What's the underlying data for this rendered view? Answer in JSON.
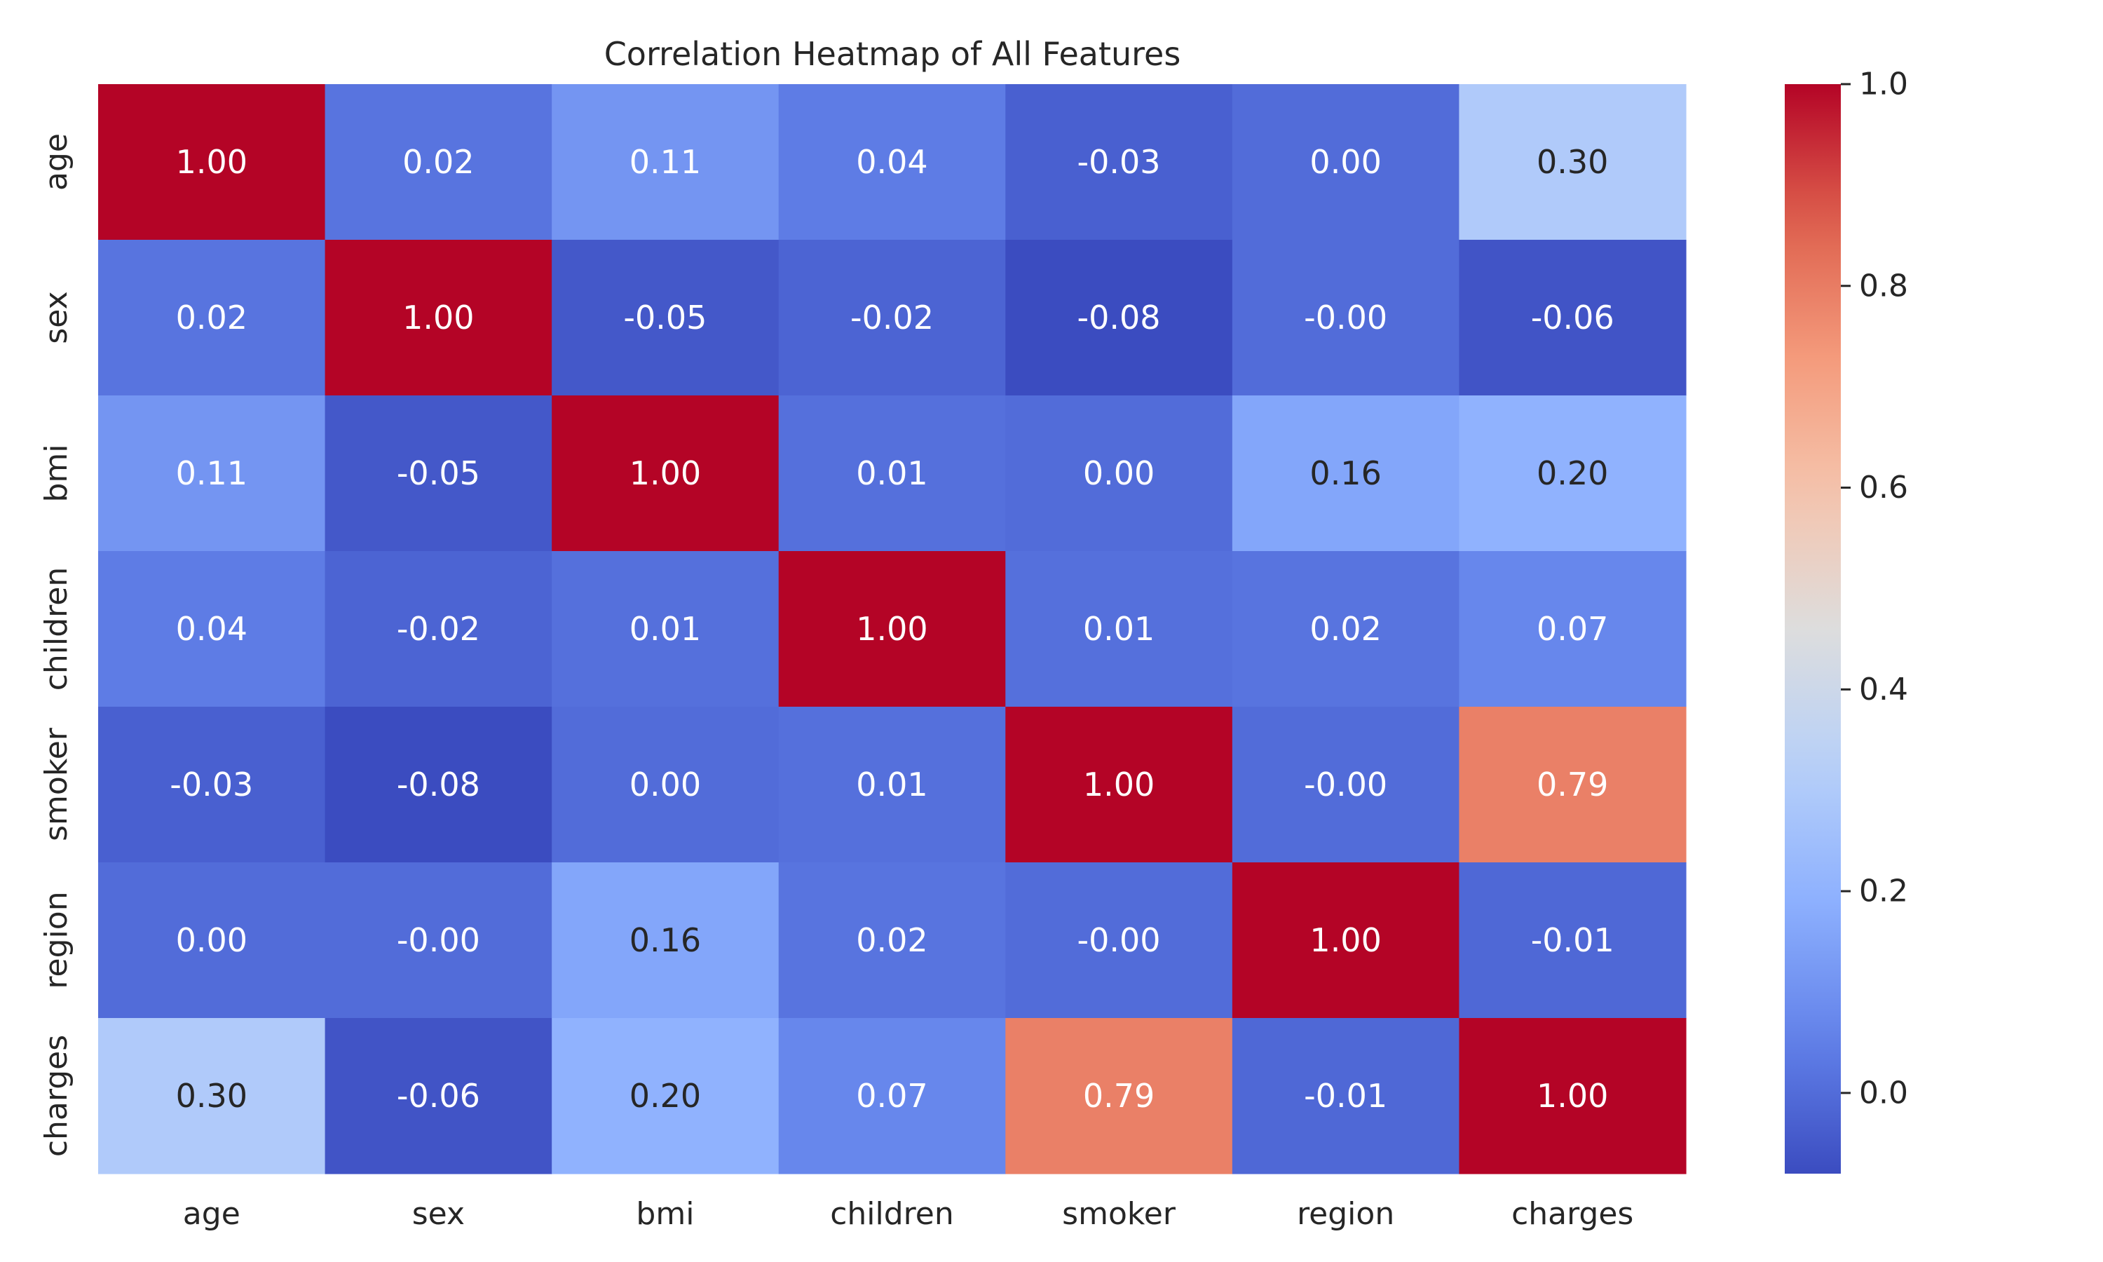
{
  "chart_data": {
    "type": "heatmap",
    "title": "Correlation Heatmap of All Features",
    "xlabel": "",
    "ylabel": "",
    "x_categories": [
      "age",
      "sex",
      "bmi",
      "children",
      "smoker",
      "region",
      "charges"
    ],
    "y_categories": [
      "age",
      "sex",
      "bmi",
      "children",
      "smoker",
      "region",
      "charges"
    ],
    "values": [
      [
        1.0,
        0.02,
        0.11,
        0.04,
        -0.03,
        0.0,
        0.3
      ],
      [
        0.02,
        1.0,
        -0.05,
        -0.02,
        -0.08,
        -0.0,
        -0.06
      ],
      [
        0.11,
        -0.05,
        1.0,
        0.01,
        0.0,
        0.16,
        0.2
      ],
      [
        0.04,
        -0.02,
        0.01,
        1.0,
        0.01,
        0.02,
        0.07
      ],
      [
        -0.03,
        -0.08,
        0.0,
        0.01,
        1.0,
        -0.0,
        0.79
      ],
      [
        0.0,
        -0.0,
        0.16,
        0.02,
        -0.0,
        1.0,
        -0.01
      ],
      [
        0.3,
        -0.06,
        0.2,
        0.07,
        0.79,
        -0.01,
        1.0
      ]
    ],
    "labels": [
      [
        "1.00",
        "0.02",
        "0.11",
        "0.04",
        "-0.03",
        "0.00",
        "0.30"
      ],
      [
        "0.02",
        "1.00",
        "-0.05",
        "-0.02",
        "-0.08",
        "-0.00",
        "-0.06"
      ],
      [
        "0.11",
        "-0.05",
        "1.00",
        "0.01",
        "0.00",
        "0.16",
        "0.20"
      ],
      [
        "0.04",
        "-0.02",
        "0.01",
        "1.00",
        "0.01",
        "0.02",
        "0.07"
      ],
      [
        "-0.03",
        "-0.08",
        "0.00",
        "0.01",
        "1.00",
        "-0.00",
        "0.79"
      ],
      [
        "0.00",
        "-0.00",
        "0.16",
        "0.02",
        "-0.00",
        "1.00",
        "-0.01"
      ],
      [
        "0.30",
        "-0.06",
        "0.20",
        "0.07",
        "0.79",
        "-0.01",
        "1.00"
      ]
    ],
    "colormap": "coolwarm",
    "vmin": -0.08,
    "vmax": 1.0,
    "colorbar": {
      "ticks": [
        0.0,
        0.2,
        0.4,
        0.6,
        0.8,
        1.0
      ],
      "tick_labels": [
        "0.0",
        "0.2",
        "0.4",
        "0.6",
        "0.8",
        "1.0"
      ],
      "position": "right"
    },
    "grid": false,
    "legend": "none"
  },
  "colors": {
    "text_dark": "#262626",
    "text_light": "#ffffff",
    "background": "#ffffff"
  }
}
